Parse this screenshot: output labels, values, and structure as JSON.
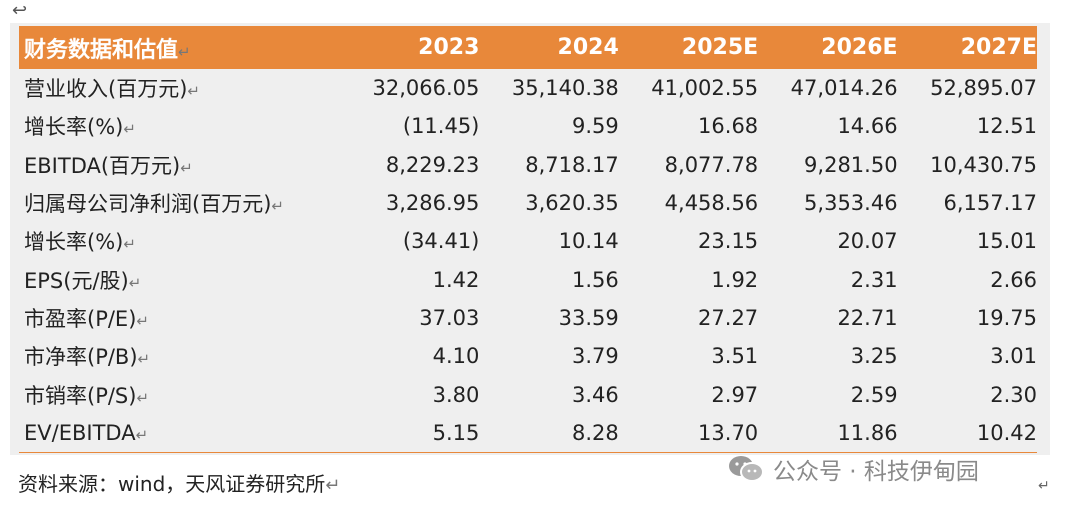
{
  "header": [
    "财务数据和估值",
    "2023",
    "2024",
    "2025E",
    "2026E",
    "2027E"
  ],
  "rows": [
    {
      "label": "营业收入(百万元)",
      "values": [
        "32,066.05",
        "35,140.38",
        "41,002.55",
        "47,014.26",
        "52,895.07"
      ]
    },
    {
      "label": "增长率(%)",
      "values": [
        "(11.45)",
        "9.59",
        "16.68",
        "14.66",
        "12.51"
      ]
    },
    {
      "label": "EBITDA(百万元)",
      "values": [
        "8,229.23",
        "8,718.17",
        "8,077.78",
        "9,281.50",
        "10,430.75"
      ]
    },
    {
      "label": "归属母公司净利润(百万元)",
      "values": [
        "3,286.95",
        "3,620.35",
        "4,458.56",
        "5,353.46",
        "6,157.17"
      ]
    },
    {
      "label": "增长率(%)",
      "values": [
        "(34.41)",
        "10.14",
        "23.15",
        "20.07",
        "15.01"
      ]
    },
    {
      "label": "EPS(元/股)",
      "values": [
        "1.42",
        "1.56",
        "1.92",
        "2.31",
        "2.66"
      ]
    },
    {
      "label": "市盈率(P/E)",
      "values": [
        "37.03",
        "33.59",
        "27.27",
        "22.71",
        "19.75"
      ]
    },
    {
      "label": "市净率(P/B)",
      "values": [
        "4.10",
        "3.79",
        "3.51",
        "3.25",
        "3.01"
      ]
    },
    {
      "label": "市销率(P/S)",
      "values": [
        "3.80",
        "3.46",
        "2.97",
        "2.59",
        "2.30"
      ]
    },
    {
      "label": "EV/EBITDA",
      "values": [
        "5.15",
        "8.28",
        "13.70",
        "11.86",
        "10.42"
      ]
    }
  ],
  "source": "资料来源：wind，天风证券研究所",
  "watermark": "公众号 · 科技伊甸园",
  "colors": {
    "header_bg": "#e8883a",
    "table_bg": "#efefef"
  },
  "icons": {
    "top": "return-arrow-icon",
    "watermark": "wechat-icon"
  }
}
